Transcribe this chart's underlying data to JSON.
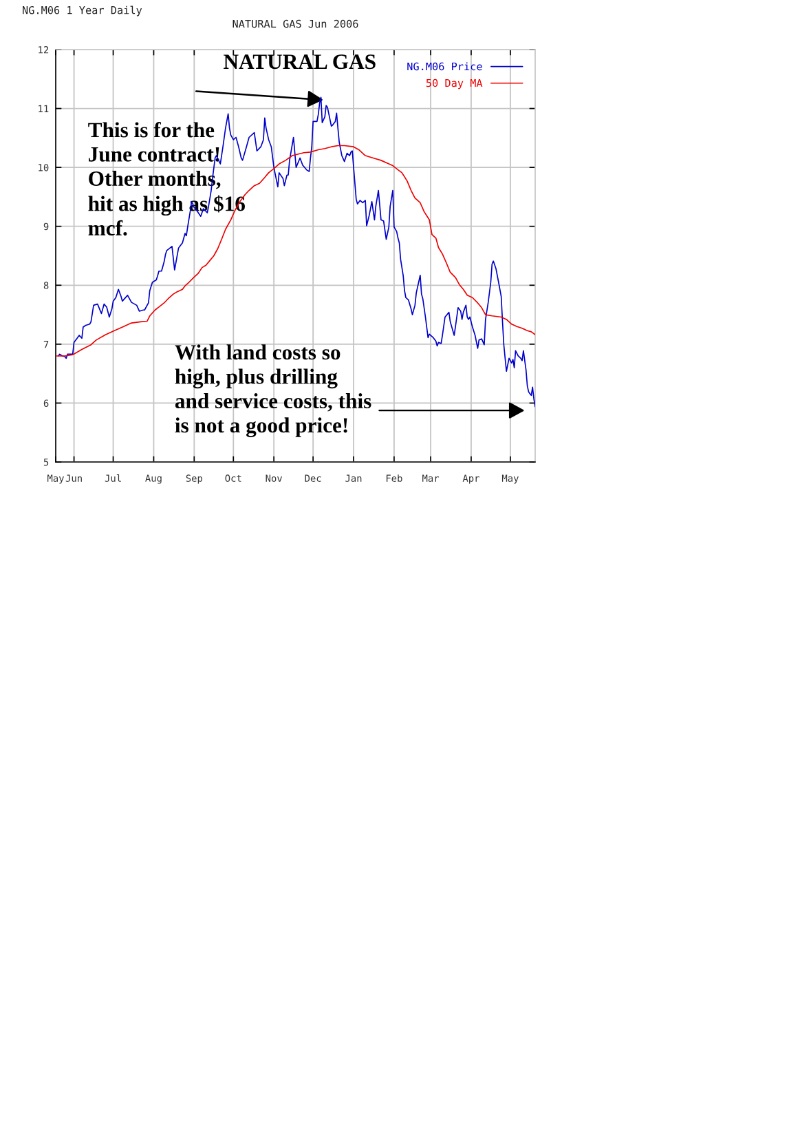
{
  "chart_data": {
    "type": "line",
    "title": "NATURAL GAS Jun 2006",
    "subtitle": "NG.M06 1 Year Daily",
    "series": [
      {
        "name": "NG.M06 Price",
        "color": "#0000cc",
        "x": [
          "2005-05-20",
          "2005-05-21",
          "2005-05-23",
          "2005-05-25",
          "2005-05-26",
          "2005-05-27",
          "2005-05-31",
          "2005-06-01",
          "2005-06-03",
          "2005-06-05",
          "2005-06-07",
          "2005-06-08",
          "2005-06-10",
          "2005-06-13",
          "2005-06-14",
          "2005-06-16",
          "2005-06-19",
          "2005-06-22",
          "2005-06-24",
          "2005-06-26",
          "2005-06-28",
          "2005-06-30",
          "2005-07-01",
          "2005-07-03",
          "2005-07-05",
          "2005-07-07",
          "2005-07-08",
          "2005-07-12",
          "2005-07-15",
          "2005-07-19",
          "2005-07-21",
          "2005-07-24",
          "2005-07-25",
          "2005-07-28",
          "2005-07-29",
          "2005-07-31",
          "2005-08-03",
          "2005-08-04",
          "2005-08-05",
          "2005-08-07",
          "2005-08-09",
          "2005-08-10",
          "2005-08-11",
          "2005-08-15",
          "2005-08-17",
          "2005-08-20",
          "2005-08-21",
          "2005-08-23",
          "2005-08-25",
          "2005-08-26",
          "2005-08-27",
          "2005-08-29",
          "2005-08-30",
          "2005-09-01",
          "2005-09-02",
          "2005-09-06",
          "2005-09-08",
          "2005-09-11",
          "2005-09-12",
          "2005-09-14",
          "2005-09-15",
          "2005-09-17",
          "2005-09-18",
          "2005-09-21",
          "2005-09-23",
          "2005-09-24",
          "2005-09-25",
          "2005-09-27",
          "2005-09-28",
          "2005-09-29",
          "2005-10-01",
          "2005-10-03",
          "2005-10-05",
          "2005-10-07",
          "2005-10-08",
          "2005-10-11",
          "2005-10-13",
          "2005-10-17",
          "2005-10-19",
          "2005-10-22",
          "2005-10-24",
          "2005-10-25",
          "2005-10-26",
          "2005-10-28",
          "2005-10-30",
          "2005-11-01",
          "2005-11-02",
          "2005-11-04",
          "2005-11-05",
          "2005-11-08",
          "2005-11-09",
          "2005-11-11",
          "2005-11-12",
          "2005-11-13",
          "2005-11-16",
          "2005-11-18",
          "2005-11-21",
          "2005-11-23",
          "2005-11-26",
          "2005-11-28",
          "2005-11-29",
          "2005-11-30",
          "2005-12-01",
          "2005-12-04",
          "2005-12-05",
          "2005-12-06",
          "2005-12-07",
          "2005-12-08",
          "2005-12-10",
          "2005-12-11",
          "2005-12-12",
          "2005-12-15",
          "2005-12-16",
          "2005-12-18",
          "2005-12-19",
          "2005-12-20",
          "2005-12-21",
          "2005-12-23",
          "2005-12-25",
          "2005-12-27",
          "2005-12-29",
          "2005-12-30",
          "2005-12-31",
          "2006-01-03",
          "2006-01-04",
          "2006-01-06",
          "2006-01-08",
          "2006-01-10",
          "2006-01-11",
          "2006-01-13",
          "2006-01-15",
          "2006-01-17",
          "2006-01-18",
          "2006-01-20",
          "2006-01-22",
          "2006-01-24",
          "2006-01-26",
          "2006-01-28",
          "2006-01-29",
          "2006-01-31",
          "2006-02-01",
          "2006-02-03",
          "2006-02-04",
          "2006-02-05",
          "2006-02-06",
          "2006-02-08",
          "2006-02-09",
          "2006-02-10",
          "2006-02-12",
          "2006-02-14",
          "2006-02-15",
          "2006-02-17",
          "2006-02-18",
          "2006-02-21",
          "2006-02-22",
          "2006-02-23",
          "2006-02-25",
          "2006-02-27",
          "2006-02-28",
          "2006-03-03",
          "2006-03-05",
          "2006-03-06",
          "2006-03-07",
          "2006-03-09",
          "2006-03-10",
          "2006-03-12",
          "2006-03-15",
          "2006-03-16",
          "2006-03-19",
          "2006-03-20",
          "2006-03-22",
          "2006-03-24",
          "2006-03-25",
          "2006-03-26",
          "2006-03-28",
          "2006-03-29",
          "2006-03-30",
          "2006-03-31",
          "2006-04-02",
          "2006-04-04",
          "2006-04-06",
          "2006-04-07",
          "2006-04-09",
          "2006-04-11",
          "2006-04-12",
          "2006-04-14",
          "2006-04-16",
          "2006-04-17",
          "2006-04-18",
          "2006-04-20",
          "2006-04-22",
          "2006-04-24",
          "2006-04-25",
          "2006-04-26",
          "2006-04-27",
          "2006-04-28",
          "2006-04-30",
          "2006-05-02",
          "2006-05-03",
          "2006-05-04",
          "2006-05-05",
          "2006-05-07",
          "2006-05-09",
          "2006-05-10",
          "2006-05-11",
          "2006-05-13",
          "2006-05-14",
          "2006-05-15",
          "2006-05-17",
          "2006-05-18",
          "2006-05-19",
          "2006-05-20"
        ],
        "values": [
          6.8,
          6.83,
          6.8,
          6.79,
          6.76,
          6.83,
          6.83,
          7.03,
          7.09,
          7.15,
          7.1,
          7.29,
          7.32,
          7.34,
          7.38,
          7.66,
          7.68,
          7.52,
          7.68,
          7.63,
          7.46,
          7.6,
          7.73,
          7.79,
          7.93,
          7.81,
          7.73,
          7.83,
          7.71,
          7.66,
          7.56,
          7.58,
          7.58,
          7.7,
          7.91,
          8.05,
          8.09,
          8.16,
          8.24,
          8.24,
          8.4,
          8.52,
          8.59,
          8.66,
          8.26,
          8.63,
          8.66,
          8.72,
          8.88,
          8.84,
          8.99,
          9.26,
          9.42,
          9.32,
          9.3,
          9.17,
          9.3,
          9.23,
          9.34,
          9.61,
          9.81,
          10.16,
          10.2,
          10.06,
          10.35,
          10.51,
          10.67,
          10.91,
          10.67,
          10.55,
          10.47,
          10.51,
          10.35,
          10.16,
          10.12,
          10.35,
          10.51,
          10.59,
          10.28,
          10.35,
          10.47,
          10.84,
          10.67,
          10.47,
          10.35,
          10.0,
          9.89,
          9.67,
          9.91,
          9.81,
          9.69,
          9.87,
          9.87,
          10.12,
          10.51,
          10.0,
          10.16,
          10.04,
          9.96,
          9.93,
          10.16,
          10.35,
          10.78,
          10.78,
          10.9,
          11.09,
          11.19,
          10.76,
          10.86,
          11.05,
          11.02,
          10.7,
          10.72,
          10.78,
          10.92,
          10.67,
          10.43,
          10.2,
          10.1,
          10.24,
          10.2,
          10.26,
          10.28,
          9.46,
          9.38,
          9.44,
          9.4,
          9.44,
          9.01,
          9.19,
          9.42,
          9.11,
          9.34,
          9.61,
          9.11,
          9.09,
          8.78,
          8.99,
          9.34,
          9.61,
          8.99,
          8.91,
          8.8,
          8.72,
          8.44,
          8.16,
          7.91,
          7.79,
          7.75,
          7.6,
          7.5,
          7.66,
          7.87,
          8.17,
          7.85,
          7.77,
          7.46,
          7.11,
          7.17,
          7.11,
          7.05,
          6.97,
          7.03,
          7.01,
          7.15,
          7.46,
          7.54,
          7.38,
          7.15,
          7.3,
          7.62,
          7.56,
          7.42,
          7.54,
          7.66,
          7.46,
          7.42,
          7.46,
          7.29,
          7.15,
          6.93,
          7.07,
          7.09,
          6.99,
          7.42,
          7.7,
          8.05,
          8.36,
          8.41,
          8.28,
          8.05,
          7.81,
          7.38,
          6.99,
          6.76,
          6.54,
          6.76,
          6.68,
          6.74,
          6.6,
          6.89,
          6.8,
          6.76,
          6.72,
          6.89,
          6.56,
          6.29,
          6.19,
          6.13,
          6.27,
          6.07,
          5.94
        ]
      },
      {
        "name": "50 Day MA",
        "color": "#ee0000",
        "x": [
          "2005-05-18",
          "2005-05-25",
          "2005-05-31",
          "2005-06-07",
          "2005-06-14",
          "2005-06-18",
          "2005-06-25",
          "2005-07-01",
          "2005-07-09",
          "2005-07-15",
          "2005-07-22",
          "2005-07-27",
          "2005-07-29",
          "2005-08-02",
          "2005-08-05",
          "2005-08-09",
          "2005-08-12",
          "2005-08-16",
          "2005-08-19",
          "2005-08-23",
          "2005-08-25",
          "2005-08-28",
          "2005-09-01",
          "2005-09-04",
          "2005-09-07",
          "2005-09-10",
          "2005-09-13",
          "2005-09-16",
          "2005-09-19",
          "2005-09-22",
          "2005-09-25",
          "2005-09-29",
          "2005-10-02",
          "2005-10-06",
          "2005-10-10",
          "2005-10-13",
          "2005-10-17",
          "2005-10-21",
          "2005-10-25",
          "2005-10-28",
          "2005-11-01",
          "2005-11-05",
          "2005-11-10",
          "2005-11-15",
          "2005-11-24",
          "2005-11-29",
          "2005-12-05",
          "2005-12-10",
          "2005-12-15",
          "2005-12-20",
          "2005-12-25",
          "2006-01-01",
          "2006-01-05",
          "2006-01-10",
          "2006-01-16",
          "2006-01-22",
          "2006-01-28",
          "2006-01-31",
          "2006-02-04",
          "2006-02-07",
          "2006-02-11",
          "2006-02-14",
          "2006-02-17",
          "2006-02-21",
          "2006-02-24",
          "2006-02-28",
          "2006-03-02",
          "2006-03-05",
          "2006-03-07",
          "2006-03-10",
          "2006-03-13",
          "2006-03-16",
          "2006-03-20",
          "2006-03-23",
          "2006-03-26",
          "2006-03-29",
          "2006-04-02",
          "2006-04-06",
          "2006-04-09",
          "2006-04-12",
          "2006-04-17",
          "2006-04-24",
          "2006-04-28",
          "2006-05-02",
          "2006-05-06",
          "2006-05-10",
          "2006-05-14",
          "2006-05-17",
          "2006-05-20"
        ],
        "values": [
          6.8,
          6.8,
          6.82,
          6.91,
          6.99,
          7.07,
          7.16,
          7.22,
          7.3,
          7.36,
          7.38,
          7.39,
          7.48,
          7.58,
          7.63,
          7.7,
          7.77,
          7.85,
          7.89,
          7.93,
          7.99,
          8.05,
          8.14,
          8.2,
          8.3,
          8.34,
          8.42,
          8.5,
          8.62,
          8.78,
          8.95,
          9.11,
          9.26,
          9.42,
          9.54,
          9.61,
          9.69,
          9.73,
          9.83,
          9.91,
          9.98,
          10.06,
          10.12,
          10.2,
          10.25,
          10.26,
          10.3,
          10.32,
          10.35,
          10.37,
          10.37,
          10.35,
          10.3,
          10.2,
          10.16,
          10.12,
          10.06,
          10.03,
          9.96,
          9.91,
          9.77,
          9.61,
          9.48,
          9.4,
          9.25,
          9.11,
          8.86,
          8.8,
          8.64,
          8.53,
          8.38,
          8.22,
          8.13,
          8.01,
          7.93,
          7.83,
          7.79,
          7.7,
          7.62,
          7.5,
          7.48,
          7.46,
          7.42,
          7.34,
          7.3,
          7.27,
          7.23,
          7.21,
          7.16
        ]
      }
    ],
    "xlim": [
      "2005-05-18",
      "2006-05-20"
    ],
    "xticks": [
      {
        "value": "2005-05-18",
        "label": "May"
      },
      {
        "value": "2005-06-01",
        "label": "Jun"
      },
      {
        "value": "2005-07-01",
        "label": "Jul"
      },
      {
        "value": "2005-08-01",
        "label": "Aug"
      },
      {
        "value": "2005-09-01",
        "label": "Sep"
      },
      {
        "value": "2005-10-01",
        "label": "Oct"
      },
      {
        "value": "2005-11-01",
        "label": "Nov"
      },
      {
        "value": "2005-12-01",
        "label": "Dec"
      },
      {
        "value": "2006-01-01",
        "label": "Jan"
      },
      {
        "value": "2006-02-01",
        "label": "Feb"
      },
      {
        "value": "2006-03-01",
        "label": "Mar"
      },
      {
        "value": "2006-04-01",
        "label": "Apr"
      },
      {
        "value": "2006-05-01",
        "label": "May"
      }
    ],
    "ylim": [
      5,
      12
    ],
    "yticks": [
      5,
      6,
      7,
      8,
      9,
      10,
      11,
      12
    ],
    "grid": true,
    "legend": "top right",
    "annotations": [
      "NATURAL GAS",
      "This is for the\nJune contract!\nOther months,\nhit as high as $16\nmcf.",
      "With land costs so\nhigh, plus drilling\nand service costs, this\nis not a good price!"
    ]
  }
}
